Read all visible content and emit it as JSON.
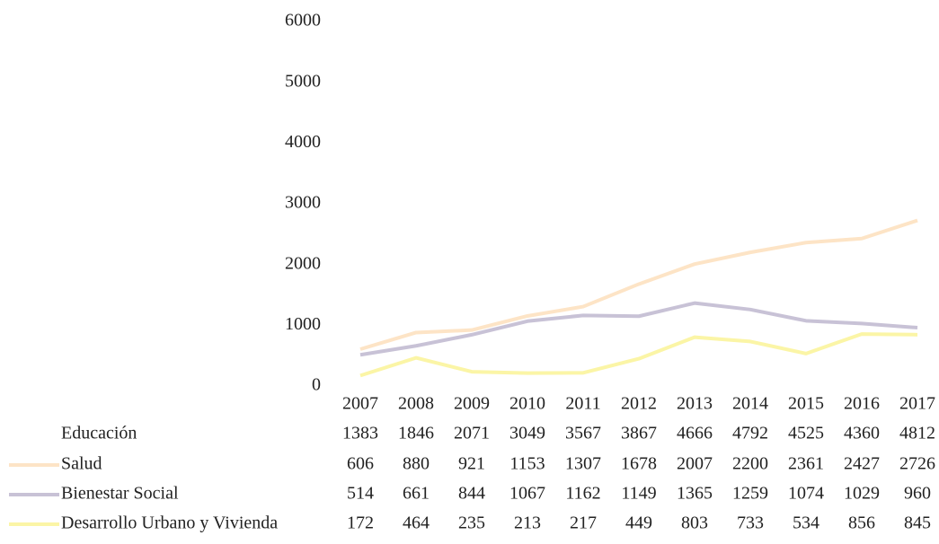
{
  "chart_data": {
    "type": "line",
    "categories": [
      "2007",
      "2008",
      "2009",
      "2010",
      "2011",
      "2012",
      "2013",
      "2014",
      "2015",
      "2016",
      "2017"
    ],
    "series": [
      {
        "name": "Educación",
        "color": "#ffffff",
        "values": [
          1383,
          1846,
          2071,
          3049,
          3567,
          3867,
          4666,
          4792,
          4525,
          4360,
          4812
        ]
      },
      {
        "name": "Salud",
        "color": "#fde4c6",
        "values": [
          606,
          880,
          921,
          1153,
          1307,
          1678,
          2007,
          2200,
          2361,
          2427,
          2726
        ]
      },
      {
        "name": "Bienestar Social",
        "color": "#c8c2d6",
        "values": [
          514,
          661,
          844,
          1067,
          1162,
          1149,
          1365,
          1259,
          1074,
          1029,
          960
        ]
      },
      {
        "name": "Desarrollo Urbano y Vivienda",
        "color": "#fbf5a6",
        "values": [
          172,
          464,
          235,
          213,
          217,
          449,
          803,
          733,
          534,
          856,
          845
        ]
      }
    ],
    "ylim": [
      0,
      6000
    ],
    "yticks": [
      0,
      1000,
      2000,
      3000,
      4000,
      5000,
      6000
    ]
  }
}
